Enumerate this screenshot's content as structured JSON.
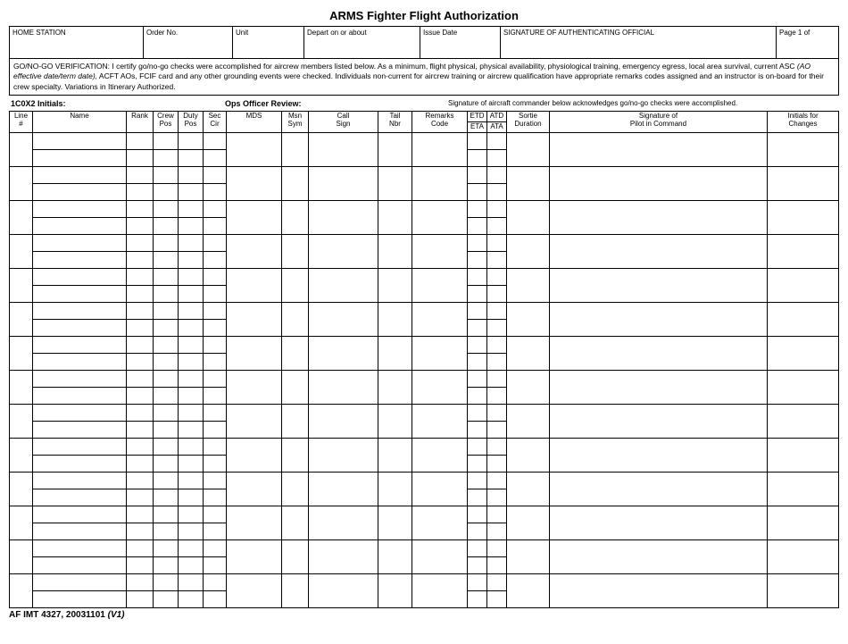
{
  "title": "ARMS Fighter Flight Authorization",
  "header_cells": {
    "home_station": "HOME STATION",
    "order_no": "Order No.",
    "unit": "Unit",
    "depart": "Depart on or about",
    "issue_date": "Issue Date",
    "sig_official": "SIGNATURE OF AUTHENTICATING OFFICIAL",
    "page": "Page 1 of"
  },
  "verification": {
    "lead": "GO/NO-GO VERIFICATION: I certify go/no-go checks were accomplished for aircrew members listed below. As a minimum, flight physical, physical availability, physiological training, emergency egress, local area survival, current ASC ",
    "italic": "(AO effective date/term date),",
    "tail": " ACFT AOs, FCIF card and any other grounding events were checked. Individuals non-current for aircrew training or aircrew qualification have appropriate remarks codes assigned and an instructor is on-board for their crew specialty. Variations in Itinerary Authorized."
  },
  "review": {
    "initials": "1C0X2 Initials:",
    "ops": "Ops Officer Review:",
    "note": "Signature of aircraft commander below acknowledges go/no-go checks were accomplished."
  },
  "columns": {
    "line": "Line\n#",
    "name": "Name",
    "rank": "Rank",
    "crew_pos": "Crew\nPos",
    "duty_pos": "Duty\nPos",
    "sec_cir": "Sec\nCir",
    "mds": "MDS",
    "msn_sym": "Msn\nSym",
    "call_sign": "Call\nSign",
    "tail_nbr": "Tail\nNbr",
    "remarks": "Remarks\nCode",
    "etd": "ETD",
    "atd": "ATD",
    "eta": "ETA",
    "ata": "ATA",
    "sortie": "Sortie\nDuration",
    "sig_pilot": "Signature of\nPilot in Command",
    "initials_chg": "Initials for\nChanges"
  },
  "row_groups": 14,
  "footer": {
    "form": "AF IMT 4327, 20031101 ",
    "ver": "(V1)"
  },
  "widths": {
    "line": 26,
    "name": 105,
    "rank": 30,
    "crew": 28,
    "duty": 28,
    "sec": 26,
    "mds": 62,
    "msn": 30,
    "call": 78,
    "tail": 38,
    "remarks": 62,
    "etd": 22,
    "atd": 22,
    "sortie": 48,
    "sig": 160,
    "initials": 80
  }
}
